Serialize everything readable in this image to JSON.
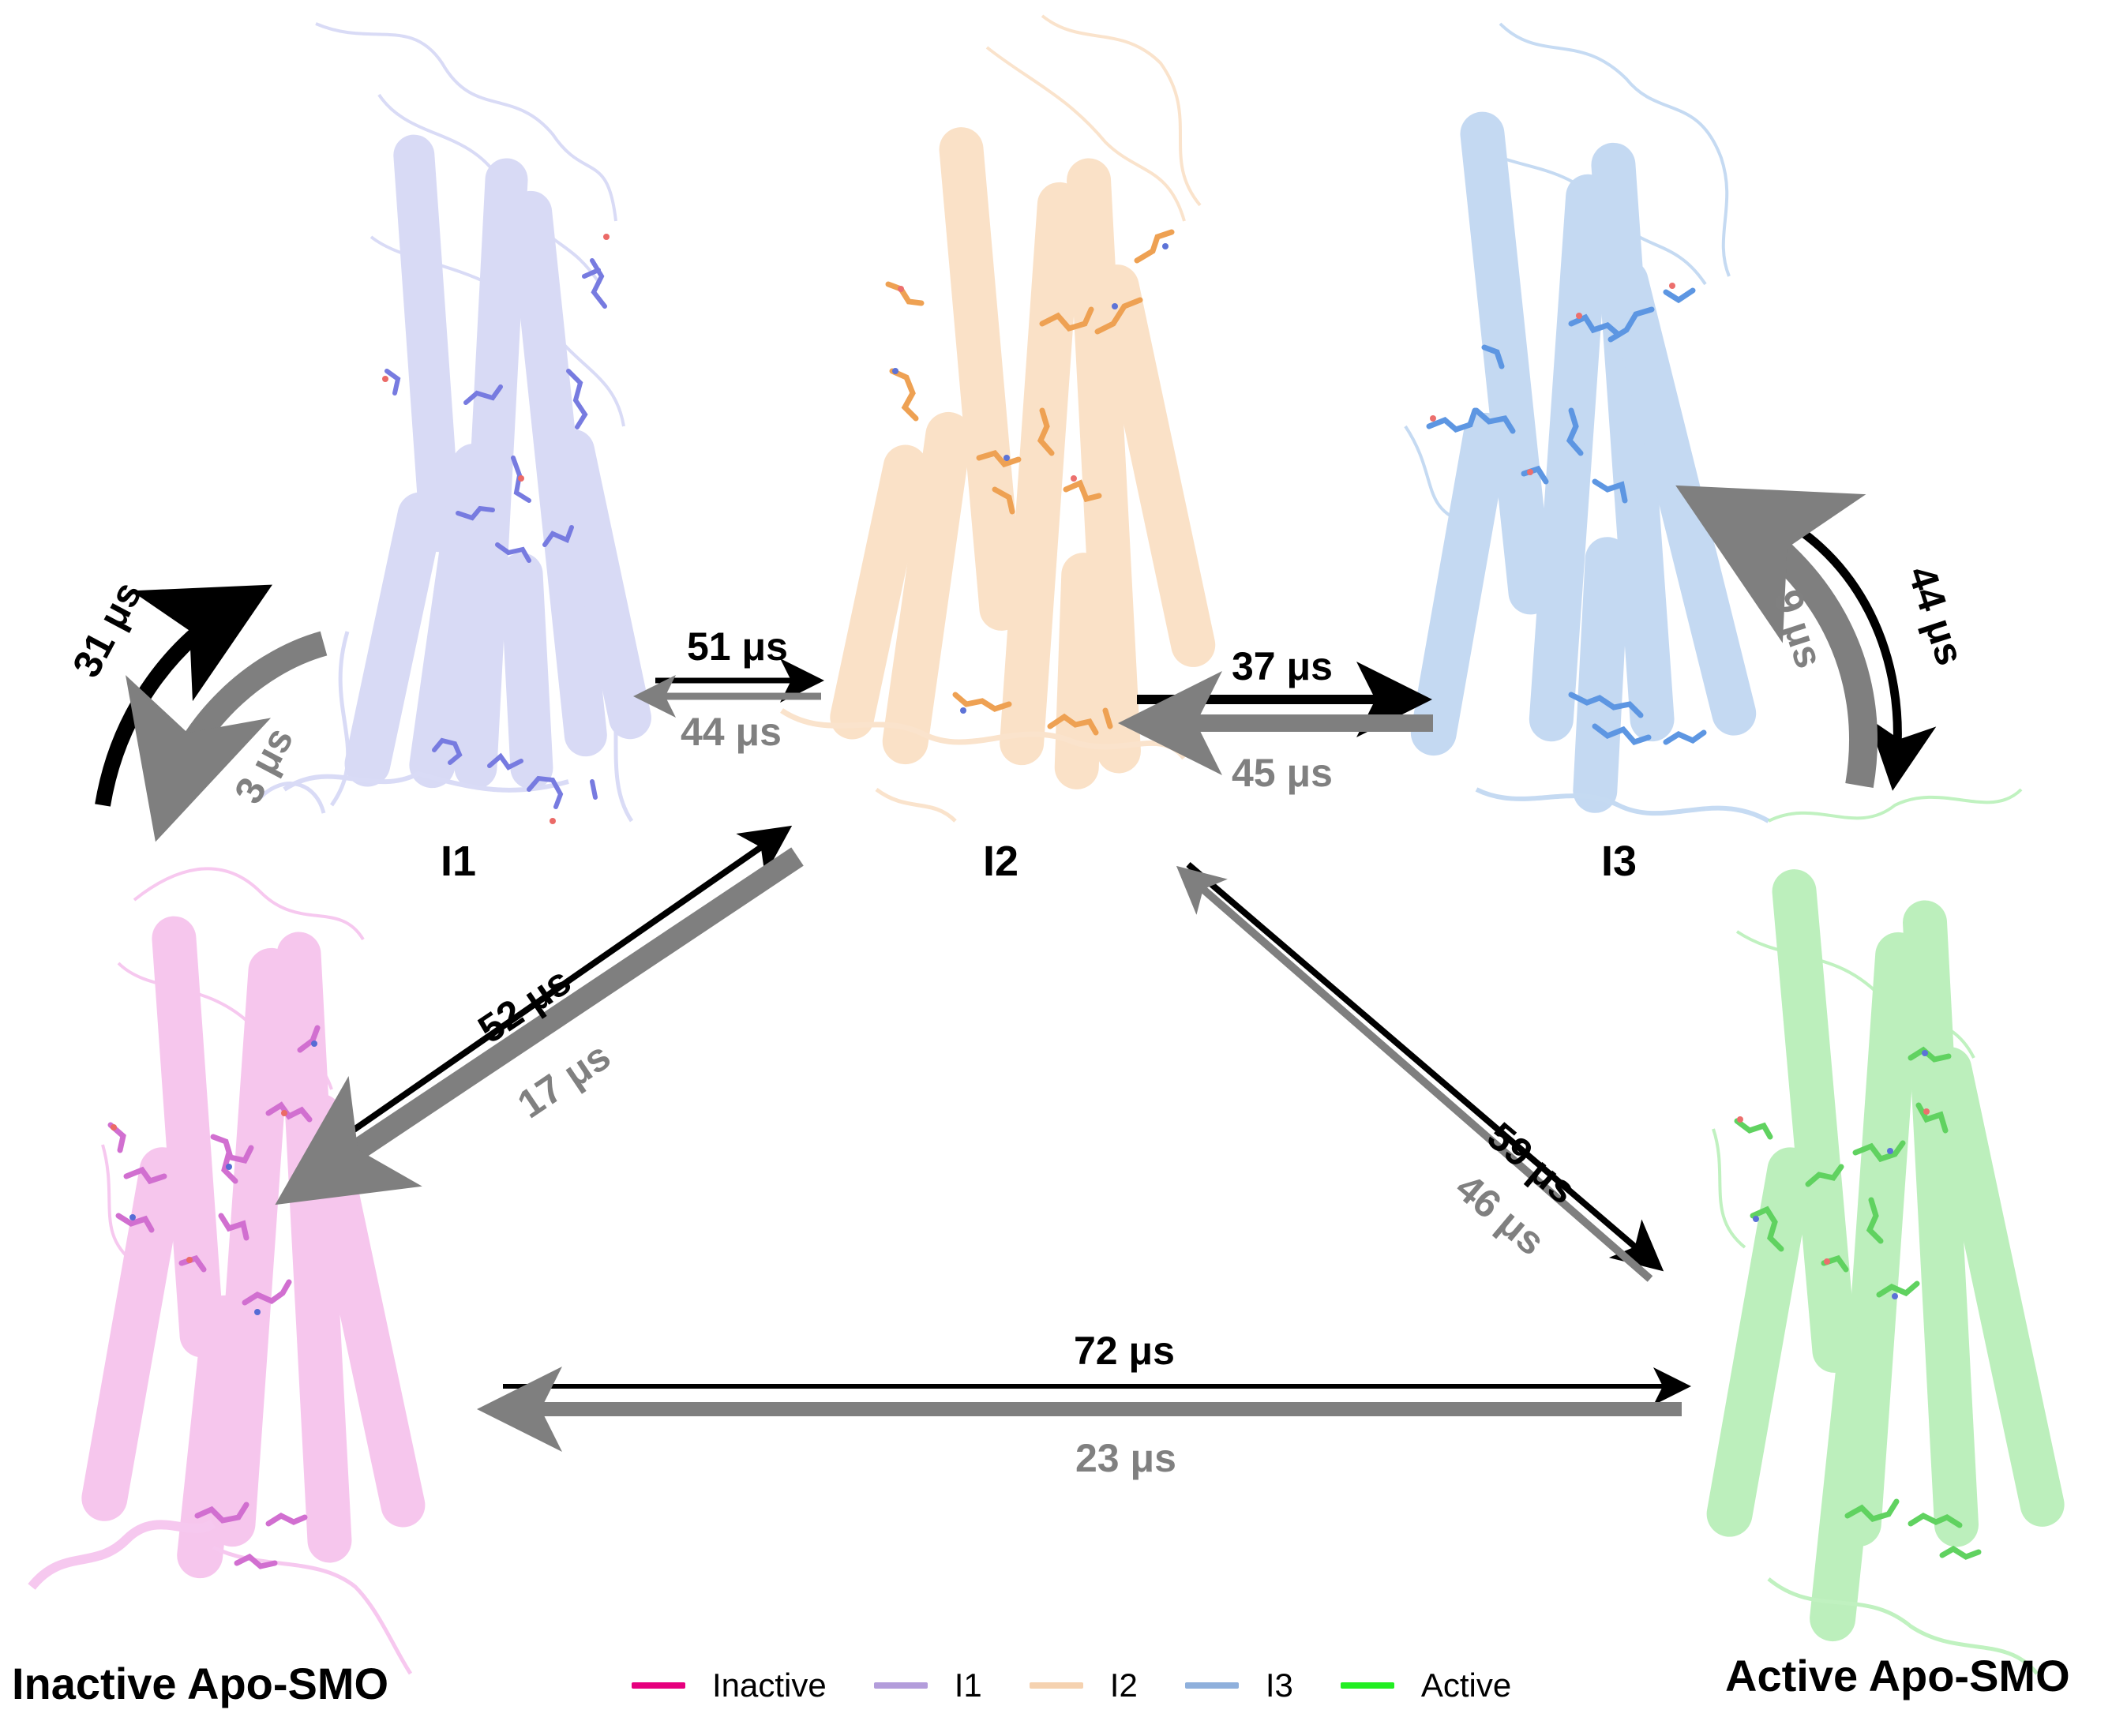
{
  "states": {
    "inactive": {
      "label": "Inactive Apo-SMO",
      "color": "#e6007e",
      "tint": "#f2a9e6"
    },
    "i1": {
      "label": "I1",
      "color": "#b39ddb",
      "tint": "#c8cbf2"
    },
    "i2": {
      "label": "I2",
      "color": "#f5d2b0",
      "tint": "#f9d8b4"
    },
    "i3": {
      "label": "I3",
      "color": "#8fb0dc",
      "tint": "#a9c8ef"
    },
    "active": {
      "label": "Active Apo-SMO",
      "color": "#22ee22",
      "tint": "#9be89b"
    }
  },
  "transitions": {
    "inactive_i1": {
      "forward": "31 μs",
      "reverse": "3 μs"
    },
    "i1_i2": {
      "forward": "51 μs",
      "reverse": "44 μs"
    },
    "i2_i3": {
      "forward": "37 μs",
      "reverse": "45 μs"
    },
    "i3_active": {
      "forward": "44 μs",
      "reverse": "9 μs"
    },
    "inactive_i2": {
      "forward": "52 μs",
      "reverse": "17 μs"
    },
    "i2_active": {
      "forward": "59 μs",
      "reverse": "46 μs"
    },
    "inactive_active": {
      "forward": "72 μs",
      "reverse": "23 μs"
    }
  },
  "legend": [
    {
      "label": "Inactive",
      "color": "#e6007e"
    },
    {
      "label": "I1",
      "color": "#b39ddb"
    },
    {
      "label": "I2",
      "color": "#f5d2b0"
    },
    {
      "label": "I3",
      "color": "#8fb0dc"
    },
    {
      "label": "Active",
      "color": "#22ee22"
    }
  ],
  "colors": {
    "forward_arrow": "#000000",
    "reverse_arrow": "#7f7f7f"
  }
}
